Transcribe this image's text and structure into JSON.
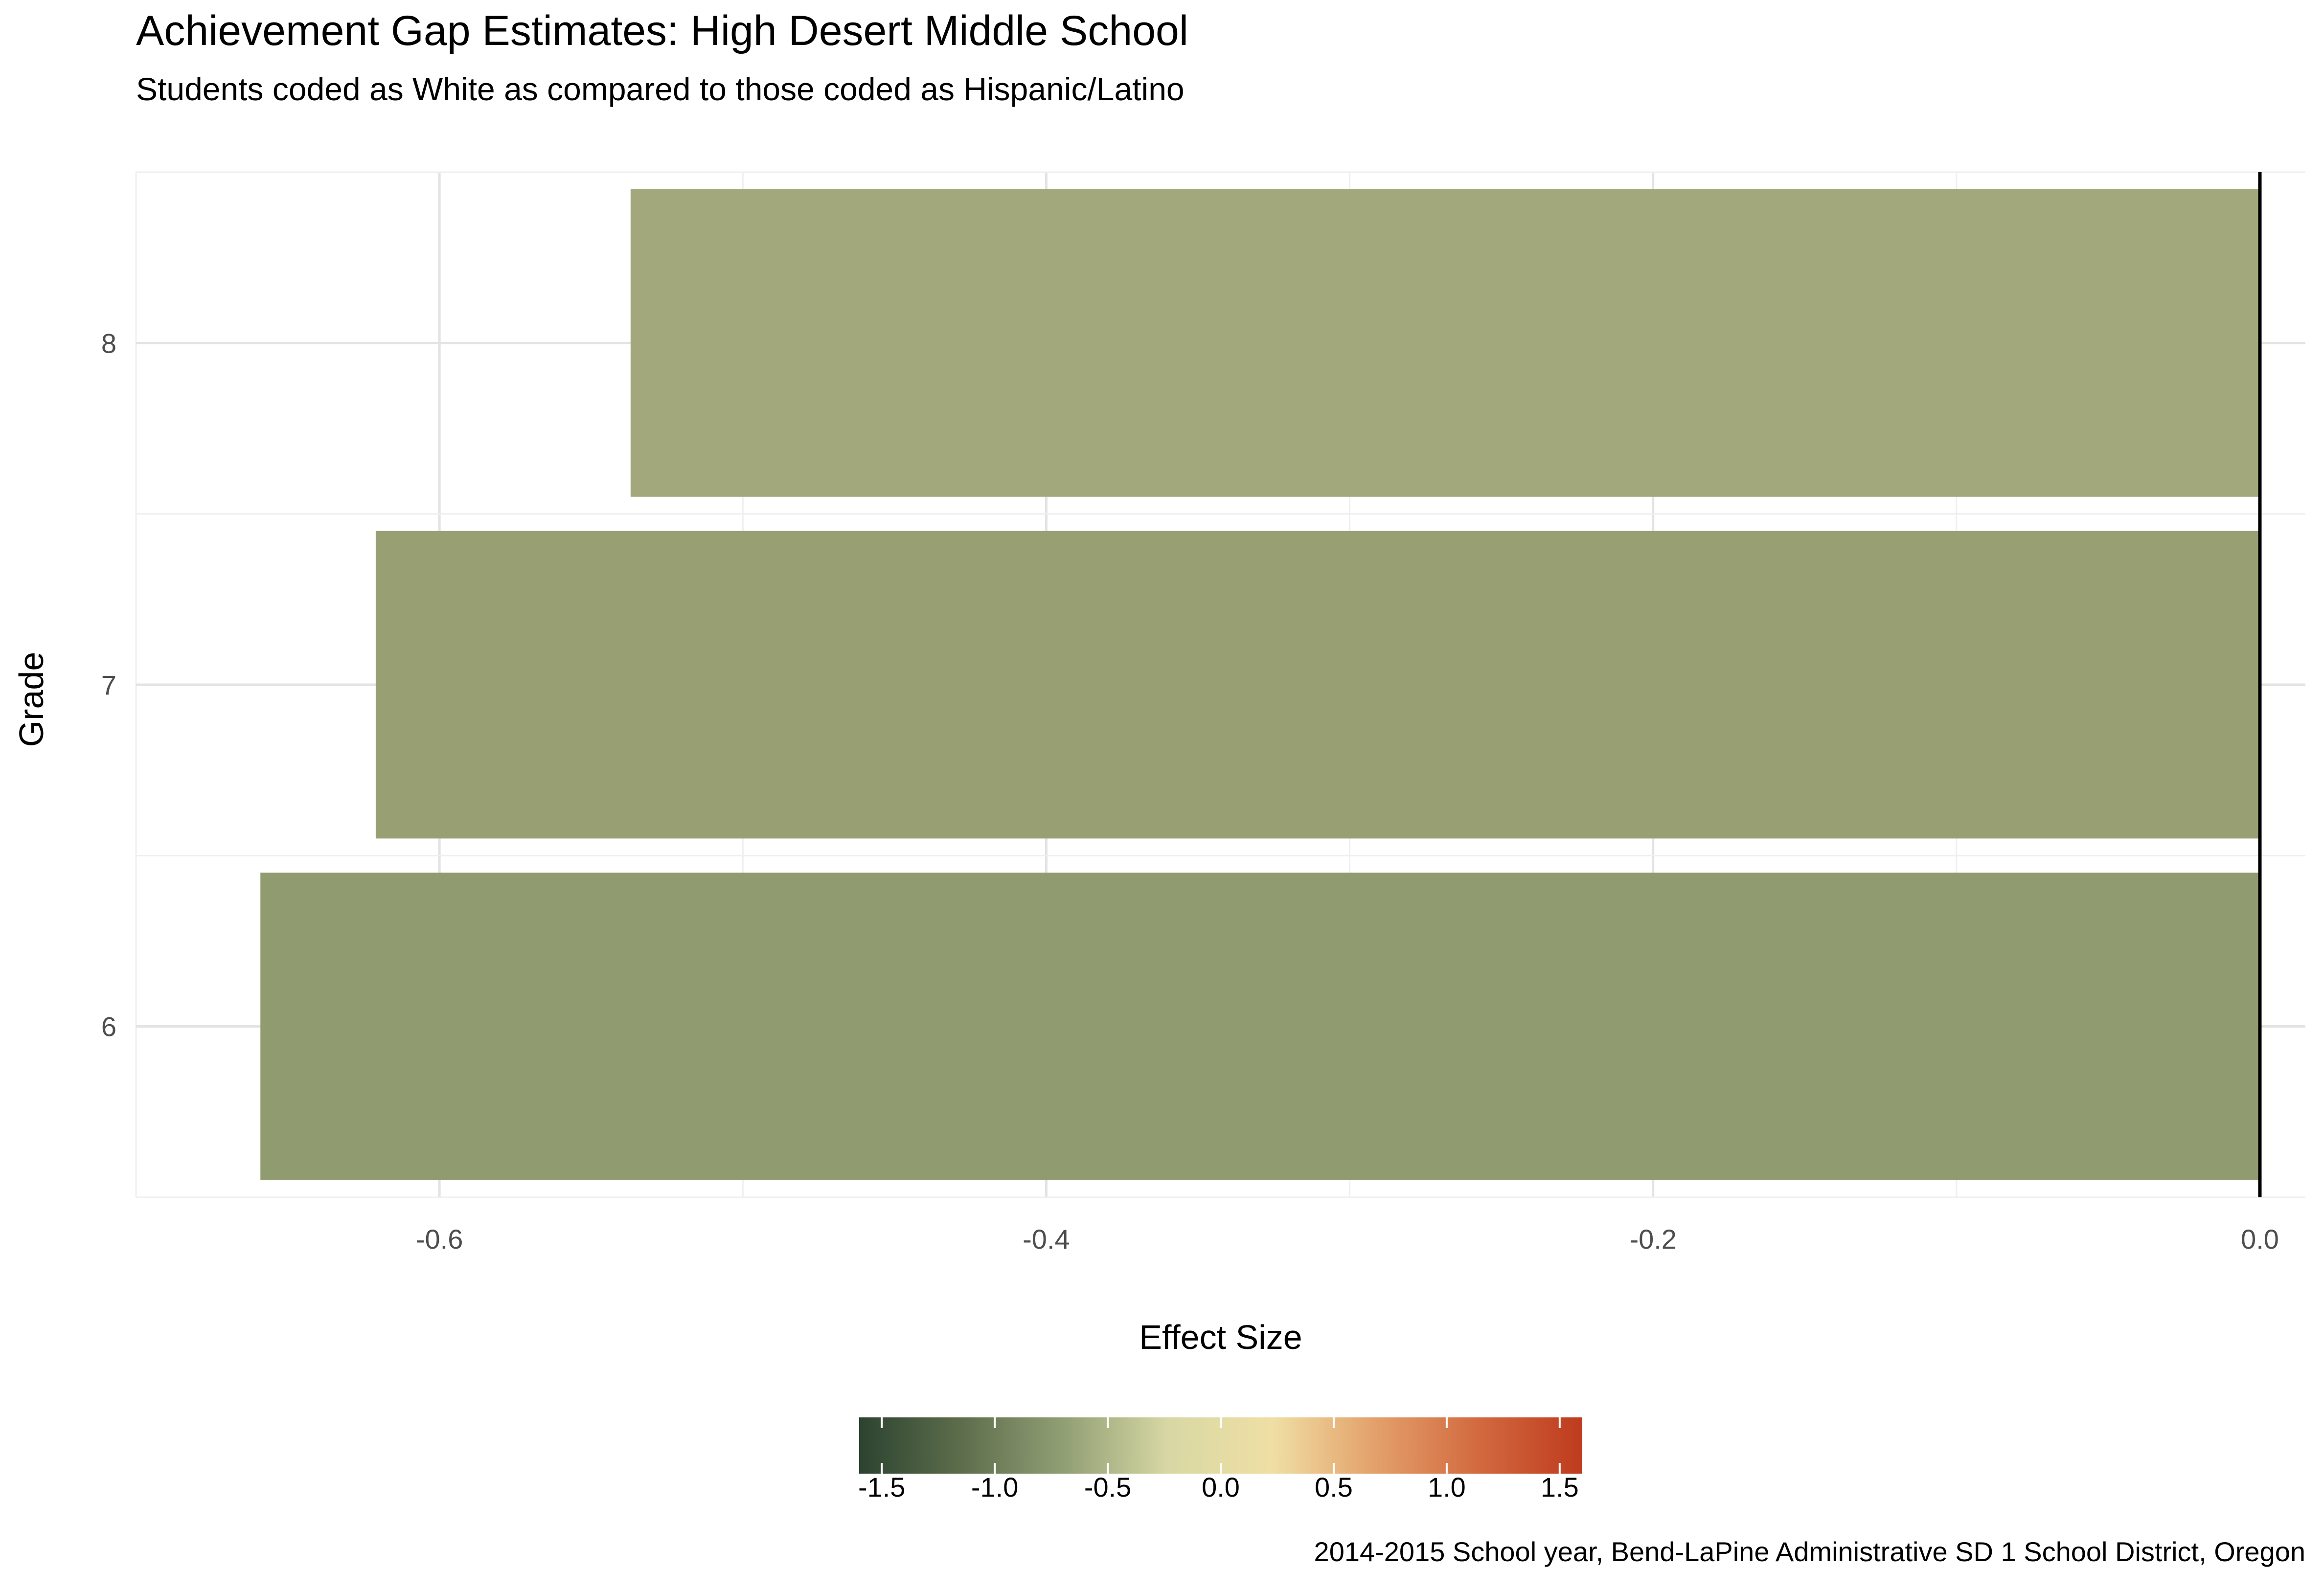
{
  "chart_data": {
    "type": "bar",
    "orientation": "horizontal",
    "title": "Achievement Gap Estimates: High Desert Middle School",
    "subtitle": "Students coded as White as compared to those coded as Hispanic/Latino",
    "xlabel": "Effect Size",
    "ylabel": "Grade",
    "caption": "2014-2015 School year, Bend-LaPine Administrative SD 1 School District, Oregon",
    "categories": [
      "6",
      "7",
      "8"
    ],
    "values": [
      -0.659,
      -0.621,
      -0.537
    ],
    "bar_colors": [
      "#909b70",
      "#979f73",
      "#a2a87c"
    ],
    "xlim": [
      -0.7,
      0.015
    ],
    "x_ticks": [
      -0.6,
      -0.4,
      -0.2,
      0.0
    ],
    "x_tick_labels": [
      "-0.6",
      "-0.4",
      "-0.2",
      "0.0"
    ],
    "grid": true,
    "reference_line": 0.0,
    "legend": {
      "type": "colorbar",
      "position": "bottom",
      "range": [
        -1.6,
        1.6
      ],
      "ticks": [
        -1.5,
        -1.0,
        -0.5,
        0.0,
        0.5,
        1.0,
        1.5
      ],
      "tick_labels": [
        "-1.5",
        "-1.0",
        "-0.5",
        "0.0",
        "0.5",
        "1.0",
        "1.5"
      ],
      "color_stops": [
        "#2c4330",
        "#5e6e4c",
        "#92a075",
        "#d8d8a4",
        "#efdfa4",
        "#e3a06a",
        "#d2693f",
        "#be3b1e"
      ]
    }
  }
}
